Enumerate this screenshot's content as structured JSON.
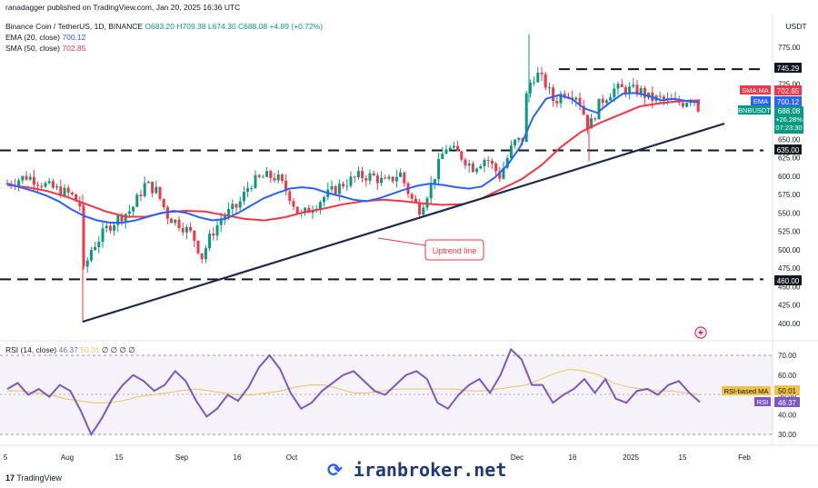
{
  "header": {
    "published": "ranadagger published on TradingView.com, Jan 20, 2025 16:36 UTC",
    "symbol": "Binance Coin / TetherUS, 1D, BINANCE",
    "ohlc": "O683.20 H709.38 L674.30 C688.08 +4.89 (+0.72%)",
    "ema_label": "EMA (20, close)",
    "ema_value": "700.12",
    "sma_label": "SMA (50, close)",
    "sma_value": "702.85",
    "rsi_label": "RSI (14, close)",
    "rsi_value": "46.37",
    "rsi_ma_value": "50.01",
    "rsi_extra": "∅ ∅ ∅ ∅"
  },
  "currency_label": "USDT",
  "footer": {
    "brand": "TradingView",
    "watermark": "iranbroker.net"
  },
  "colors": {
    "up": "#089981",
    "down": "#f23645",
    "ema": "#2962ff",
    "sma": "#f23645",
    "trend": "#1b2a4e",
    "rsi": "#7e57c2",
    "rsi_ma": "#e8c55a"
  },
  "tags": {
    "resistance": "745.29",
    "sma": "SMA:MA",
    "sma_val": "702.85",
    "ema": "EMA",
    "ema_val": "700.12",
    "ticker": "BNBUSDT",
    "price": "688.08",
    "change": "+26.28%",
    "countdown": "07:23:30",
    "mid": "635.00",
    "support": "460.00",
    "rsi_ma_name": "RSI-based MA",
    "rsi_ma_val": "50.01",
    "rsi_name": "RSI",
    "rsi_val": "46.37"
  },
  "annotation": "Uptrend line",
  "chart_data": [
    {
      "type": "candlestick",
      "title": "Binance Coin / TetherUS, 1D, BINANCE",
      "x_ticks": [
        "5",
        "Aug",
        "15",
        "Sep",
        "16",
        "Oct",
        "Dec",
        "16",
        "2025",
        "15",
        "Feb"
      ],
      "y_ticks": [
        400,
        425,
        450,
        475,
        500,
        525,
        550,
        575,
        600,
        625,
        650,
        675,
        700,
        725,
        750,
        775
      ],
      "ylim": [
        385,
        790
      ],
      "horizontal_levels": [
        745.29,
        635.0,
        460.0
      ],
      "trend_line": {
        "from": [
          "Aug 5 2024",
          402
        ],
        "to": [
          "Jan 24 2025",
          661
        ]
      },
      "ema20": [
        590,
        585,
        580,
        574,
        566,
        555,
        546,
        540,
        537,
        537,
        540,
        545,
        550,
        553,
        550,
        544,
        540,
        542,
        550,
        560,
        570,
        577,
        583,
        585,
        583,
        577,
        573,
        568,
        566,
        570,
        576,
        582,
        587,
        590,
        588,
        585,
        583,
        586,
        598,
        615,
        640,
        680,
        705,
        710,
        705,
        692,
        686,
        700,
        712,
        713,
        709,
        703,
        705,
        702,
        700
      ],
      "sma50": [
        588,
        585,
        580,
        572,
        562,
        552,
        545,
        545,
        551,
        553,
        552,
        547,
        542,
        540,
        544,
        551,
        556,
        562,
        566,
        568,
        566,
        563,
        561,
        562,
        570,
        583,
        596,
        615,
        640,
        660,
        673,
        684,
        695,
        699,
        702,
        703
      ],
      "last_candle": {
        "open": 683.2,
        "high": 709.38,
        "low": 674.3,
        "close": 688.08
      }
    },
    {
      "type": "line",
      "title": "RSI (14, close)",
      "y_ticks": [
        30,
        40,
        50,
        60,
        70
      ],
      "ylim": [
        25,
        75
      ],
      "series": [
        {
          "name": "RSI",
          "values": [
            53,
            56,
            50,
            53,
            49,
            55,
            52,
            42,
            30,
            38,
            48,
            55,
            60,
            57,
            52,
            55,
            62,
            57,
            47,
            39,
            43,
            50,
            47,
            54,
            64,
            70,
            63,
            51,
            43,
            46,
            52,
            56,
            60,
            62,
            57,
            52,
            50,
            55,
            60,
            62,
            58,
            46,
            43,
            50,
            55,
            58,
            51,
            60,
            73,
            68,
            55,
            55,
            46,
            50,
            53,
            58,
            51,
            58,
            48,
            46,
            52,
            53,
            50,
            55,
            57,
            51,
            46.37
          ]
        },
        {
          "name": "RSI-based MA",
          "values": [
            52,
            52,
            51,
            50,
            48,
            47,
            46,
            46,
            47,
            49,
            50,
            51,
            52,
            53,
            52,
            51,
            50,
            50,
            51,
            52,
            54,
            55,
            55,
            53,
            51,
            51,
            52,
            53,
            53,
            53,
            53,
            53,
            52,
            52,
            53,
            54,
            55,
            58,
            61,
            63,
            62,
            60,
            56,
            54,
            53,
            52,
            52,
            51,
            50.01
          ]
        }
      ]
    }
  ]
}
